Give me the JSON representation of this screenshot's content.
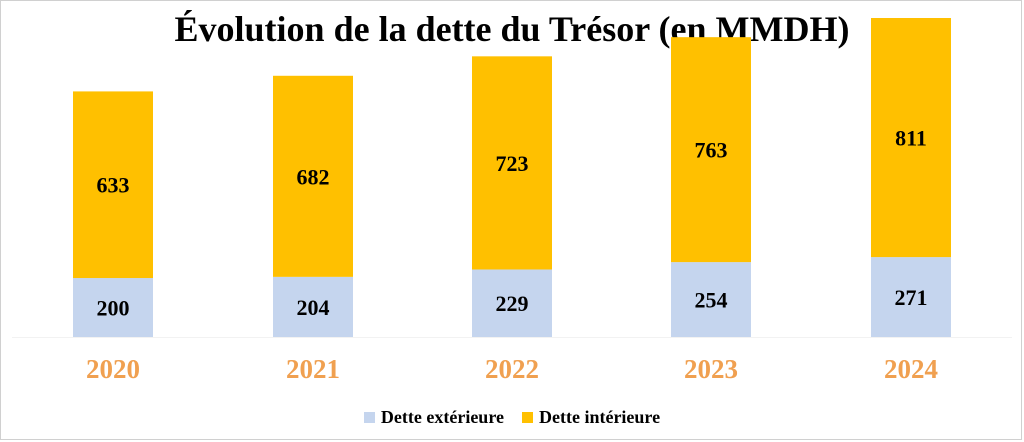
{
  "chart_data": {
    "type": "bar",
    "stacked": true,
    "title": "Évolution de la dette du Trésor (en MMDH)",
    "categories": [
      "2020",
      "2021",
      "2022",
      "2023",
      "2024"
    ],
    "series": [
      {
        "name": "Dette extérieure",
        "color": "#c5d5ee",
        "values": [
          200,
          204,
          229,
          254,
          271
        ]
      },
      {
        "name": "Dette intérieure",
        "color": "#ffc000",
        "values": [
          633,
          682,
          723,
          763,
          811
        ]
      }
    ],
    "category_label_color": "#f0a050",
    "ylim": [
      0,
      1082
    ],
    "grid": false,
    "legend_position": "bottom"
  }
}
